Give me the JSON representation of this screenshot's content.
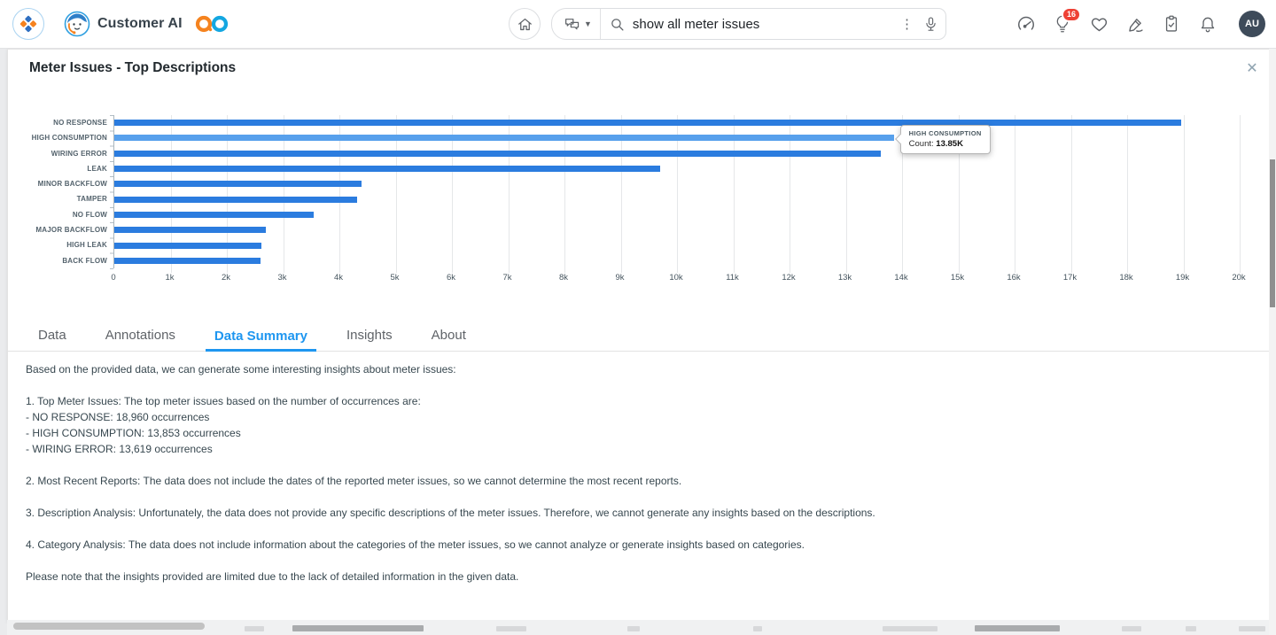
{
  "topbar": {
    "app_name": "Customer AI",
    "search": {
      "query": "show all meter issues"
    },
    "notification_count": "16",
    "avatar_initials": "AU",
    "right_icons": [
      "gauge",
      "lightbulb",
      "heart",
      "signature-pen",
      "clipboard-check",
      "bell"
    ]
  },
  "panel": {
    "title": "Meter Issues - Top Descriptions",
    "close_glyph": "✕"
  },
  "tabs": [
    {
      "label": "Data",
      "active": false
    },
    {
      "label": "Annotations",
      "active": false
    },
    {
      "label": "Data Summary",
      "active": true
    },
    {
      "label": "Insights",
      "active": false
    },
    {
      "label": "About",
      "active": false
    }
  ],
  "chart_data": {
    "type": "bar",
    "orientation": "horizontal",
    "title": "Meter Issues - Top Descriptions",
    "categories": [
      "NO RESPONSE",
      "HIGH CONSUMPTION",
      "WIRING ERROR",
      "LEAK",
      "MINOR BACKFLOW",
      "TAMPER",
      "NO FLOW",
      "MAJOR BACKFLOW",
      "HIGH LEAK",
      "BACK FLOW"
    ],
    "values": [
      18960,
      13853,
      13619,
      9700,
      4400,
      4320,
      3550,
      2700,
      2620,
      2600
    ],
    "xlabel": "",
    "ylabel": "",
    "xlim": [
      0,
      20000
    ],
    "x_ticks": [
      "0",
      "1k",
      "2k",
      "3k",
      "4k",
      "5k",
      "6k",
      "7k",
      "8k",
      "9k",
      "10k",
      "11k",
      "12k",
      "13k",
      "14k",
      "15k",
      "16k",
      "17k",
      "18k",
      "19k",
      "20k"
    ],
    "grid": true,
    "bar_color": "#2b7cdf",
    "highlight_color": "#57a0ec",
    "highlight_index": 1,
    "tooltip": {
      "title": "HIGH CONSUMPTION",
      "label": "Count:",
      "value": "13.85K"
    }
  },
  "summary": {
    "paragraphs": [
      [
        "Based on the provided data, we can generate some interesting insights about meter issues:"
      ],
      [
        "1. Top Meter Issues: The top meter issues based on the number of occurrences are:",
        "- NO RESPONSE: 18,960 occurrences",
        "- HIGH CONSUMPTION: 13,853 occurrences",
        "- WIRING ERROR: 13,619 occurrences"
      ],
      [
        "2. Most Recent Reports: The data does not include the dates of the reported meter issues, so we cannot determine the most recent reports."
      ],
      [
        "3. Description Analysis: Unfortunately, the data does not provide any specific descriptions of the meter issues. Therefore, we cannot generate any insights based on the descriptions."
      ],
      [
        "4. Category Analysis: The data does not include information about the categories of the meter issues, so we cannot analyze or generate insights based on categories."
      ],
      [
        "Please note that the insights provided are limited due to the lack of detailed information in the given data."
      ]
    ]
  }
}
